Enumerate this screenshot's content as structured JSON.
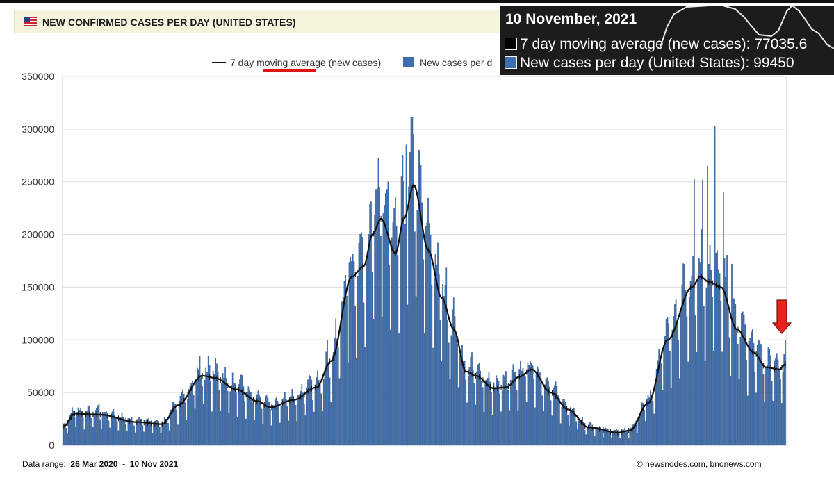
{
  "header": {
    "title": "NEW CONFIRMED CASES PER DAY (UNITED STATES)",
    "flag_icon": "us-flag-icon"
  },
  "tooltip": {
    "date": "10 November, 2021",
    "avg_label": "7 day moving average (new cases): ",
    "avg_value": "77035.6",
    "cases_label": "New cases per day (United States): ",
    "cases_value": "99450",
    "highlight_color": "#e01010"
  },
  "annotation": {
    "arrow_icon": "red-down-arrow-icon",
    "color": "#e8231b"
  },
  "footer": {
    "range_label": "Data range:",
    "range_start": "26 Mar 2020",
    "range_sep": "-",
    "range_end": "10 Nov 2021",
    "credit": "© newsnodes.com, bnonews.com"
  },
  "chart_data": {
    "type": "bar",
    "x_start": "2020-03-26",
    "x_end": "2021-11-10",
    "ylim": [
      0,
      350000
    ],
    "y_ticks": [
      "0",
      "50000",
      "100000",
      "150000",
      "200000",
      "250000",
      "300000",
      "350000"
    ],
    "grid": true,
    "legend_placement": "top",
    "legend": {
      "line_label": "7 day moving average (new cases)",
      "bar_label": "New cases per d"
    },
    "colors": {
      "bars": "#3d6fb0",
      "bar_edge": "#22406b",
      "line": "#111111"
    },
    "moving_average_anchors": [
      [
        "2020-03-26",
        18000
      ],
      [
        "2020-04-04",
        30000
      ],
      [
        "2020-04-25",
        29000
      ],
      [
        "2020-05-25",
        22000
      ],
      [
        "2020-06-15",
        20000
      ],
      [
        "2020-06-28",
        38000
      ],
      [
        "2020-07-18",
        66000
      ],
      [
        "2020-07-28",
        64000
      ],
      [
        "2020-08-15",
        53000
      ],
      [
        "2020-09-01",
        42000
      ],
      [
        "2020-09-12",
        36000
      ],
      [
        "2020-10-01",
        43000
      ],
      [
        "2020-10-20",
        55000
      ],
      [
        "2020-11-01",
        80000
      ],
      [
        "2020-11-18",
        160000
      ],
      [
        "2020-11-28",
        170000
      ],
      [
        "2020-12-05",
        200000
      ],
      [
        "2020-12-12",
        215000
      ],
      [
        "2020-12-24",
        182000
      ],
      [
        "2020-12-31",
        215000
      ],
      [
        "2021-01-08",
        247000
      ],
      [
        "2021-01-20",
        185000
      ],
      [
        "2021-01-31",
        140000
      ],
      [
        "2021-02-10",
        110000
      ],
      [
        "2021-02-20",
        70000
      ],
      [
        "2021-02-28",
        66000
      ],
      [
        "2021-03-15",
        54000
      ],
      [
        "2021-03-25",
        55000
      ],
      [
        "2021-04-05",
        65000
      ],
      [
        "2021-04-15",
        72000
      ],
      [
        "2021-05-01",
        50000
      ],
      [
        "2021-05-15",
        34000
      ],
      [
        "2021-06-01",
        17000
      ],
      [
        "2021-06-25",
        12000
      ],
      [
        "2021-07-05",
        14000
      ],
      [
        "2021-07-20",
        40000
      ],
      [
        "2021-08-05",
        100000
      ],
      [
        "2021-08-25",
        150000
      ],
      [
        "2021-09-01",
        160000
      ],
      [
        "2021-09-08",
        155000
      ],
      [
        "2021-09-18",
        150000
      ],
      [
        "2021-10-01",
        110000
      ],
      [
        "2021-10-15",
        88000
      ],
      [
        "2021-10-25",
        74000
      ],
      [
        "2021-11-05",
        72000
      ],
      [
        "2021-11-10",
        77035.6
      ]
    ],
    "daily_spikes": [
      [
        "2020-04-24",
        39000
      ],
      [
        "2020-07-24",
        76000
      ],
      [
        "2020-12-04",
        231000
      ],
      [
        "2020-12-11",
        245000
      ],
      [
        "2020-12-18",
        250000
      ],
      [
        "2021-01-02",
        285000
      ],
      [
        "2021-01-08",
        295000
      ],
      [
        "2021-08-27",
        253000
      ],
      [
        "2021-09-03",
        252000
      ],
      [
        "2021-09-07",
        265000
      ],
      [
        "2021-09-13",
        303000
      ],
      [
        "2021-09-20",
        240000
      ],
      [
        "2021-09-27",
        172000
      ],
      [
        "2021-11-10",
        99450
      ]
    ]
  }
}
